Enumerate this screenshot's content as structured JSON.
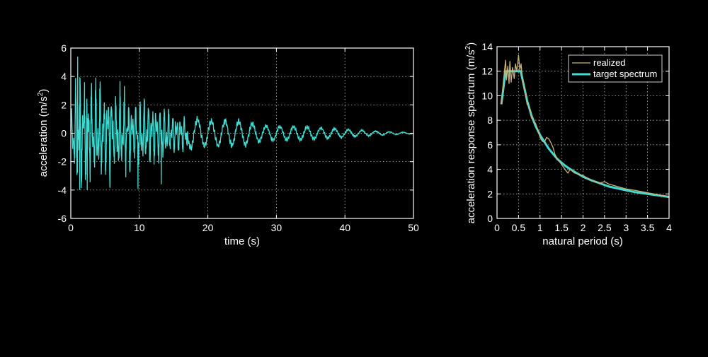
{
  "colors": {
    "background": "#000000",
    "axis": "#ffffff",
    "cyan": "#3fdcd4",
    "tan": "#c8b47a"
  },
  "chart_data": [
    {
      "type": "line",
      "xlabel": "time (s)",
      "ylabel_main": "acceleration (m/s",
      "ylabel_sup": "2",
      "ylabel_end": ")",
      "xlim": [
        0,
        50
      ],
      "ylim": [
        -6,
        6
      ],
      "xticks": [
        "0",
        "10",
        "20",
        "30",
        "40",
        "50"
      ],
      "yticks": [
        "-6",
        "-4",
        "-2",
        "0",
        "2",
        "4",
        "6"
      ],
      "grid": true,
      "series": [
        {
          "color": "#3fdcd4",
          "envelope": [
            [
              0,
              1.2
            ],
            [
              1,
              5.3
            ],
            [
              2,
              3.8
            ],
            [
              3,
              3.5
            ],
            [
              5,
              3.3
            ],
            [
              7,
              3.0
            ],
            [
              9,
              2.6
            ],
            [
              11,
              2.4
            ],
            [
              13,
              2.0
            ],
            [
              15,
              1.6
            ],
            [
              17,
              1.3
            ],
            [
              20,
              1.0
            ],
            [
              25,
              1.0
            ],
            [
              28,
              0.6
            ],
            [
              32,
              0.55
            ],
            [
              35,
              0.5
            ],
            [
              40,
              0.3
            ],
            [
              45,
              0.15
            ],
            [
              50,
              0.05
            ]
          ],
          "peaks": [
            {
              "x": 1.0,
              "y": 5.4
            },
            {
              "x": 1.3,
              "y": -4.0
            },
            {
              "x": 2.0,
              "y": 3.6
            },
            {
              "x": 2.4,
              "y": -4.0
            },
            {
              "x": 13.2,
              "y": -3.6
            },
            {
              "x": 9.8,
              "y": -3.9
            }
          ]
        }
      ]
    },
    {
      "type": "line",
      "xlabel": "natural period (s)",
      "ylabel_main": "acceleration response spectrum (m/s",
      "ylabel_sup": "2",
      "ylabel_end": ")",
      "xlim": [
        0,
        4
      ],
      "ylim": [
        0,
        14
      ],
      "xticks": [
        "0",
        "0.5",
        "1",
        "1.5",
        "2",
        "2.5",
        "3",
        "3.5",
        "4"
      ],
      "yticks": [
        "0",
        "2",
        "4",
        "6",
        "8",
        "10",
        "12",
        "14"
      ],
      "grid": true,
      "legend_position": "top-right",
      "series": [
        {
          "name": "realized",
          "color": "#c8b47a",
          "x": [
            0.1,
            0.15,
            0.2,
            0.22,
            0.25,
            0.28,
            0.3,
            0.33,
            0.36,
            0.4,
            0.43,
            0.46,
            0.5,
            0.53,
            0.56,
            0.6,
            0.65,
            0.7,
            0.75,
            0.8,
            0.85,
            0.9,
            0.95,
            1.0,
            1.05,
            1.1,
            1.15,
            1.2,
            1.25,
            1.3,
            1.35,
            1.4,
            1.5,
            1.6,
            1.65,
            1.7,
            1.8,
            2.0,
            2.2,
            2.4,
            2.5,
            2.6,
            2.8,
            3.0,
            3.2,
            3.5,
            3.8,
            4.0
          ],
          "y": [
            9.3,
            11.2,
            12.9,
            11.3,
            12.4,
            11.0,
            12.8,
            11.1,
            12.3,
            11.4,
            12.6,
            12.0,
            13.3,
            12.1,
            12.6,
            11.0,
            10.4,
            9.3,
            9.1,
            8.2,
            8.0,
            7.7,
            7.2,
            6.6,
            6.3,
            6.2,
            6.6,
            6.5,
            6.2,
            5.8,
            5.2,
            4.9,
            4.4,
            3.9,
            3.7,
            4.0,
            3.7,
            3.5,
            3.1,
            2.9,
            3.0,
            2.8,
            2.6,
            2.4,
            2.3,
            2.1,
            1.9,
            1.8
          ]
        },
        {
          "name": "target spectrum",
          "color": "#3fdcd4",
          "x": [
            0.1,
            0.2,
            0.3,
            0.4,
            0.5,
            0.55,
            0.6,
            0.7,
            0.8,
            0.9,
            1.0,
            1.2,
            1.4,
            1.6,
            1.8,
            2.0,
            2.2,
            2.4,
            2.6,
            2.8,
            3.0,
            3.2,
            3.4,
            3.6,
            3.8,
            4.0
          ],
          "y": [
            9.3,
            12.0,
            12.0,
            12.0,
            12.0,
            12.0,
            11.2,
            9.6,
            8.4,
            7.5,
            6.8,
            5.7,
            4.85,
            4.25,
            3.8,
            3.4,
            3.1,
            2.85,
            2.6,
            2.45,
            2.3,
            2.15,
            2.05,
            1.95,
            1.85,
            1.75
          ]
        }
      ]
    }
  ]
}
